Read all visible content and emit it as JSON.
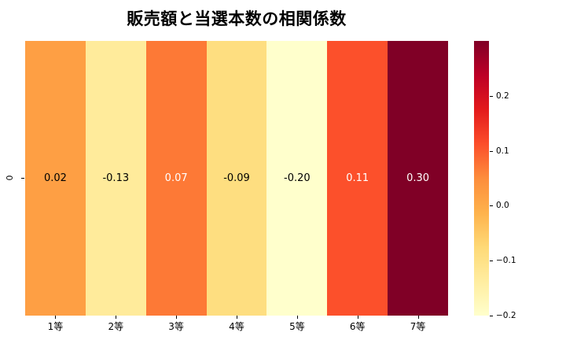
{
  "title": "販売額と当選本数の相関係数",
  "y_axis": {
    "row_label": "0"
  },
  "chart_data": {
    "type": "heatmap",
    "title": "販売額と当選本数の相関係数",
    "categories": [
      "1等",
      "2等",
      "3等",
      "4等",
      "5等",
      "6等",
      "7等"
    ],
    "row_labels": [
      "0"
    ],
    "values": [
      [
        0.02,
        -0.13,
        0.07,
        -0.09,
        -0.2,
        0.11,
        0.3
      ]
    ],
    "value_labels": [
      [
        "0.02",
        "-0.13",
        "0.07",
        "-0.09",
        "-0.20",
        "0.11",
        "0.30"
      ]
    ],
    "cell_colors": [
      [
        "#FE9F44",
        "#FFEB9B",
        "#FD7936",
        "#FEDE80",
        "#FFFFCC",
        "#FC502B",
        "#800026"
      ]
    ],
    "value_text_colors": [
      [
        "#000000",
        "#000000",
        "#FFFFFF",
        "#000000",
        "#000000",
        "#FFFFFF",
        "#FFFFFF"
      ]
    ],
    "colormap": "YlOrRd",
    "vmin": -0.2,
    "vmax": 0.3,
    "grid": false,
    "colorbar": {
      "position": "right",
      "ticks": [
        {
          "value": 0.2,
          "label": "0.2"
        },
        {
          "value": 0.1,
          "label": "0.1"
        },
        {
          "value": 0.0,
          "label": "0.0"
        },
        {
          "value": -0.1,
          "label": "−0.1"
        },
        {
          "value": -0.2,
          "label": "−0.2"
        }
      ],
      "gradient_bottom_to_top": [
        "#FFFFCC",
        "#FFEDA0",
        "#FED976",
        "#FEB24C",
        "#FD8D3C",
        "#FC4E2A",
        "#E31A1C",
        "#BD0026",
        "#800026"
      ]
    }
  }
}
